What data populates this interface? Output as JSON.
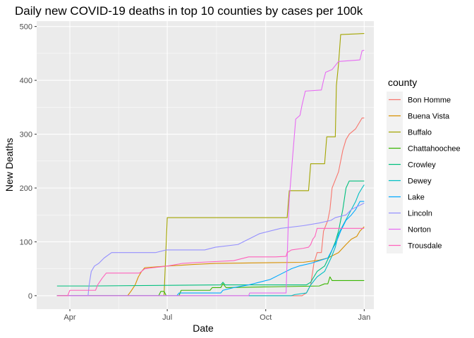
{
  "chart_data": {
    "type": "line",
    "title": "Daily new COVID-19 deaths in top 10 counties by cases per 100k",
    "xlabel": "Date",
    "ylabel": "New Deaths",
    "x_type": "date",
    "xlim": [
      "2020-03-01",
      "2021-01-10"
    ],
    "ylim": [
      -25,
      510
    ],
    "x_ticks": [
      {
        "date": "2020-04-01",
        "label": "Apr"
      },
      {
        "date": "2020-07-01",
        "label": "Jul"
      },
      {
        "date": "2020-10-01",
        "label": "Oct"
      },
      {
        "date": "2021-01-01",
        "label": "Jan"
      }
    ],
    "y_ticks": [
      0,
      100,
      200,
      300,
      400,
      500
    ],
    "grid": true,
    "legend_title": "county",
    "legend_position": "right",
    "series": [
      {
        "name": "Bon Homme",
        "color": "#F8766D",
        "points": [
          [
            "2020-03-20",
            0
          ],
          [
            "2020-11-04",
            0
          ],
          [
            "2020-11-08",
            5
          ],
          [
            "2020-11-12",
            20
          ],
          [
            "2020-11-15",
            60
          ],
          [
            "2020-11-18",
            80
          ],
          [
            "2020-11-22",
            80
          ],
          [
            "2020-11-24",
            120
          ],
          [
            "2020-11-28",
            140
          ],
          [
            "2020-11-30",
            160
          ],
          [
            "2020-12-02",
            200
          ],
          [
            "2020-12-08",
            230
          ],
          [
            "2020-12-12",
            270
          ],
          [
            "2020-12-15",
            290
          ],
          [
            "2020-12-18",
            300
          ],
          [
            "2020-12-24",
            310
          ],
          [
            "2020-12-27",
            320
          ],
          [
            "2020-12-30",
            330
          ],
          [
            "2021-01-01",
            330
          ]
        ]
      },
      {
        "name": "Buena Vista",
        "color": "#D89000",
        "points": [
          [
            "2020-03-20",
            0
          ],
          [
            "2020-05-25",
            0
          ],
          [
            "2020-05-28",
            8
          ],
          [
            "2020-06-01",
            20
          ],
          [
            "2020-06-04",
            35
          ],
          [
            "2020-06-07",
            45
          ],
          [
            "2020-06-10",
            52
          ],
          [
            "2020-07-01",
            55
          ],
          [
            "2020-07-25",
            58
          ],
          [
            "2020-08-15",
            60
          ],
          [
            "2020-11-05",
            62
          ],
          [
            "2020-11-20",
            66
          ],
          [
            "2020-11-28",
            70
          ],
          [
            "2020-12-08",
            80
          ],
          [
            "2020-12-15",
            95
          ],
          [
            "2020-12-20",
            105
          ],
          [
            "2020-12-25",
            110
          ],
          [
            "2020-12-28",
            120
          ],
          [
            "2021-01-01",
            128
          ]
        ]
      },
      {
        "name": "Buffalo",
        "color": "#A3A500",
        "points": [
          [
            "2020-03-20",
            0
          ],
          [
            "2020-06-28",
            0
          ],
          [
            "2020-07-01",
            145
          ],
          [
            "2020-10-20",
            145
          ],
          [
            "2020-10-21",
            145
          ],
          [
            "2020-10-23",
            195
          ],
          [
            "2020-11-10",
            195
          ],
          [
            "2020-11-12",
            245
          ],
          [
            "2020-11-25",
            245
          ],
          [
            "2020-11-27",
            295
          ],
          [
            "2020-12-05",
            295
          ],
          [
            "2020-12-06",
            390
          ],
          [
            "2020-12-08",
            430
          ],
          [
            "2020-12-10",
            485
          ],
          [
            "2021-01-01",
            487
          ]
        ]
      },
      {
        "name": "Chattahoochee",
        "color": "#39B600",
        "points": [
          [
            "2020-03-20",
            0
          ],
          [
            "2020-06-23",
            0
          ],
          [
            "2020-06-25",
            8
          ],
          [
            "2020-06-28",
            8
          ],
          [
            "2020-06-30",
            0
          ],
          [
            "2020-07-12",
            0
          ],
          [
            "2020-07-14",
            10
          ],
          [
            "2020-08-10",
            10
          ],
          [
            "2020-08-12",
            15
          ],
          [
            "2020-08-20",
            15
          ],
          [
            "2020-08-22",
            22
          ],
          [
            "2020-08-25",
            15
          ],
          [
            "2020-11-20",
            18
          ],
          [
            "2020-11-25",
            22
          ],
          [
            "2020-11-28",
            22
          ],
          [
            "2020-11-30",
            35
          ],
          [
            "2020-12-02",
            28
          ],
          [
            "2021-01-01",
            28
          ]
        ]
      },
      {
        "name": "Crowley",
        "color": "#00BF7D",
        "points": [
          [
            "2020-03-20",
            18
          ],
          [
            "2020-04-20",
            18
          ],
          [
            "2020-08-20",
            20
          ],
          [
            "2020-08-22",
            25
          ],
          [
            "2020-08-24",
            20
          ],
          [
            "2020-11-08",
            20
          ],
          [
            "2020-11-12",
            25
          ],
          [
            "2020-11-18",
            45
          ],
          [
            "2020-11-25",
            55
          ],
          [
            "2020-12-01",
            80
          ],
          [
            "2020-12-05",
            100
          ],
          [
            "2020-12-08",
            120
          ],
          [
            "2020-12-10",
            140
          ],
          [
            "2020-12-12",
            160
          ],
          [
            "2020-12-15",
            200
          ],
          [
            "2020-12-18",
            213
          ],
          [
            "2021-01-01",
            213
          ]
        ]
      },
      {
        "name": "Dewey",
        "color": "#00BFC4",
        "points": [
          [
            "2020-03-20",
            0
          ],
          [
            "2020-10-25",
            0
          ],
          [
            "2020-10-28",
            2
          ],
          [
            "2020-11-08",
            5
          ],
          [
            "2020-11-12",
            20
          ],
          [
            "2020-11-18",
            35
          ],
          [
            "2020-11-25",
            45
          ],
          [
            "2020-12-01",
            70
          ],
          [
            "2020-12-05",
            90
          ],
          [
            "2020-12-08",
            115
          ],
          [
            "2020-12-12",
            130
          ],
          [
            "2020-12-16",
            145
          ],
          [
            "2020-12-20",
            160
          ],
          [
            "2020-12-24",
            175
          ],
          [
            "2020-12-27",
            190
          ],
          [
            "2020-12-30",
            200
          ],
          [
            "2021-01-01",
            206
          ]
        ]
      },
      {
        "name": "Lake",
        "color": "#00A9FF",
        "points": [
          [
            "2020-03-20",
            0
          ],
          [
            "2020-07-10",
            0
          ],
          [
            "2020-07-12",
            5
          ],
          [
            "2020-08-20",
            5
          ],
          [
            "2020-08-22",
            10
          ],
          [
            "2020-09-01",
            15
          ],
          [
            "2020-09-15",
            20
          ],
          [
            "2020-09-25",
            25
          ],
          [
            "2020-10-05",
            30
          ],
          [
            "2020-10-15",
            40
          ],
          [
            "2020-10-25",
            50
          ],
          [
            "2020-11-01",
            55
          ],
          [
            "2020-11-12",
            60
          ],
          [
            "2020-11-20",
            65
          ],
          [
            "2020-11-28",
            70
          ],
          [
            "2020-12-02",
            85
          ],
          [
            "2020-12-06",
            100
          ],
          [
            "2020-12-10",
            120
          ],
          [
            "2020-12-15",
            140
          ],
          [
            "2020-12-20",
            150
          ],
          [
            "2020-12-24",
            160
          ],
          [
            "2020-12-28",
            175
          ],
          [
            "2021-01-01",
            175
          ]
        ]
      },
      {
        "name": "Lincoln",
        "color": "#9590FF",
        "points": [
          [
            "2020-03-20",
            0
          ],
          [
            "2020-04-18",
            0
          ],
          [
            "2020-04-19",
            20
          ],
          [
            "2020-04-21",
            45
          ],
          [
            "2020-04-24",
            55
          ],
          [
            "2020-04-28",
            60
          ],
          [
            "2020-05-03",
            70
          ],
          [
            "2020-05-10",
            80
          ],
          [
            "2020-06-20",
            80
          ],
          [
            "2020-06-30",
            85
          ],
          [
            "2020-08-05",
            85
          ],
          [
            "2020-08-15",
            90
          ],
          [
            "2020-09-05",
            95
          ],
          [
            "2020-09-15",
            105
          ],
          [
            "2020-09-25",
            115
          ],
          [
            "2020-10-15",
            125
          ],
          [
            "2020-11-05",
            130
          ],
          [
            "2020-11-20",
            135
          ],
          [
            "2020-12-01",
            140
          ],
          [
            "2020-12-05",
            145
          ],
          [
            "2020-12-15",
            150
          ],
          [
            "2020-12-20",
            160
          ],
          [
            "2020-12-25",
            165
          ],
          [
            "2021-01-01",
            172
          ]
        ]
      },
      {
        "name": "Norton",
        "color": "#E76BF3",
        "points": [
          [
            "2020-03-20",
            0
          ],
          [
            "2020-09-15",
            0
          ],
          [
            "2020-09-16",
            5
          ],
          [
            "2020-10-10",
            5
          ],
          [
            "2020-10-20",
            5
          ],
          [
            "2020-10-22",
            130
          ],
          [
            "2020-10-23",
            180
          ],
          [
            "2020-10-26",
            255
          ],
          [
            "2020-10-29",
            328
          ],
          [
            "2020-11-02",
            335
          ],
          [
            "2020-11-04",
            355
          ],
          [
            "2020-11-07",
            380
          ],
          [
            "2020-11-22",
            382
          ],
          [
            "2020-11-24",
            400
          ],
          [
            "2020-11-26",
            415
          ],
          [
            "2020-12-02",
            420
          ],
          [
            "2020-12-08",
            435
          ],
          [
            "2020-12-28",
            438
          ],
          [
            "2020-12-30",
            455
          ],
          [
            "2021-01-01",
            456
          ]
        ]
      },
      {
        "name": "Trousdale",
        "color": "#FF62BC",
        "points": [
          [
            "2020-03-20",
            0
          ],
          [
            "2020-03-30",
            0
          ],
          [
            "2020-04-01",
            10
          ],
          [
            "2020-04-25",
            10
          ],
          [
            "2020-04-27",
            20
          ],
          [
            "2020-05-01",
            32
          ],
          [
            "2020-05-05",
            42
          ],
          [
            "2020-06-05",
            42
          ],
          [
            "2020-06-10",
            50
          ],
          [
            "2020-07-01",
            55
          ],
          [
            "2020-07-15",
            60
          ],
          [
            "2020-08-01",
            62
          ],
          [
            "2020-09-01",
            65
          ],
          [
            "2020-09-15",
            72
          ],
          [
            "2020-10-10",
            72
          ],
          [
            "2020-10-20",
            73
          ],
          [
            "2020-10-21",
            80
          ],
          [
            "2020-10-25",
            85
          ],
          [
            "2020-11-05",
            88
          ],
          [
            "2020-11-10",
            90
          ],
          [
            "2020-11-12",
            95
          ],
          [
            "2020-11-14",
            105
          ],
          [
            "2020-11-16",
            110
          ],
          [
            "2020-11-18",
            125
          ],
          [
            "2021-01-01",
            125
          ]
        ]
      }
    ]
  }
}
